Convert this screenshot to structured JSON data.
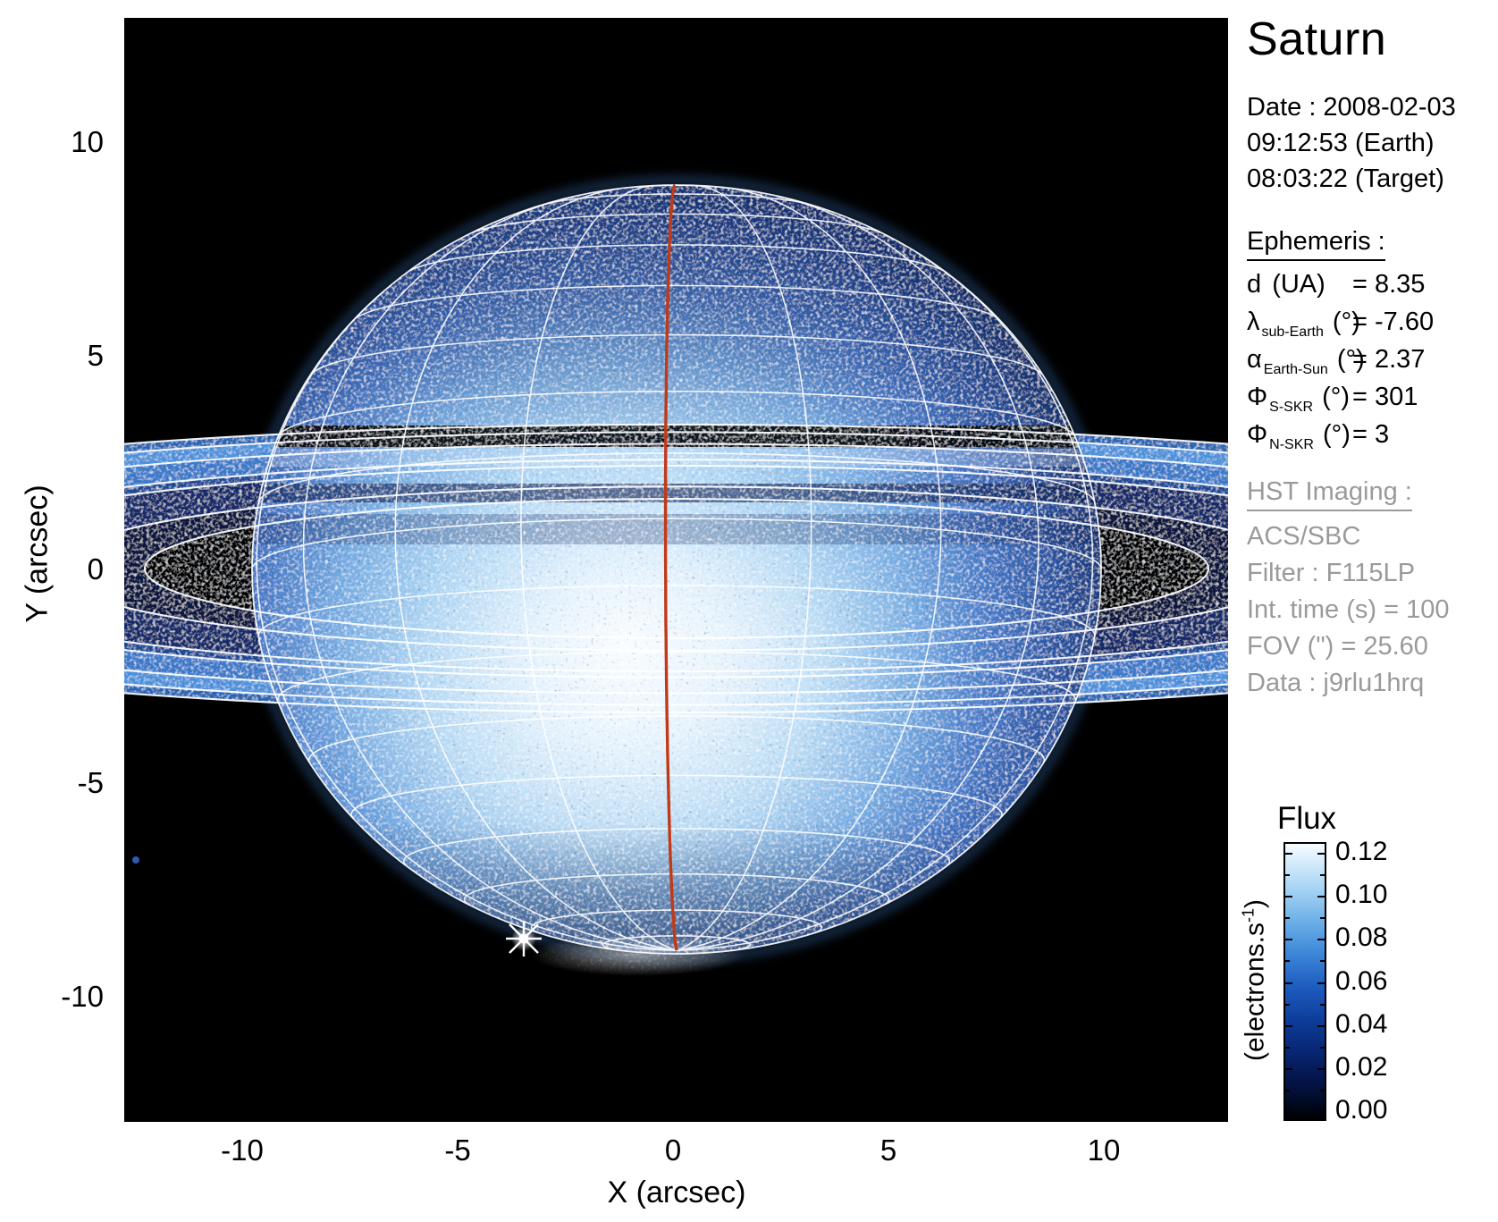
{
  "title": "Saturn",
  "date_block": {
    "lines": [
      "Date : 2008-02-03",
      "09:12:53 (Earth)",
      "08:03:22 (Target)"
    ]
  },
  "ephemeris": {
    "heading": "Ephemeris :",
    "rows": [
      {
        "symbol": "d",
        "sub": "",
        "unit": " (UA)",
        "eq": "= 8.35"
      },
      {
        "symbol": "λ",
        "sub": "sub-Earth",
        "unit": " (°)",
        "eq": "= -7.60"
      },
      {
        "symbol": "α",
        "sub": "Earth-Sun",
        "unit": " (°)",
        "eq": "= 2.37"
      },
      {
        "symbol": "Φ",
        "sub": "S-SKR",
        "unit": " (°)",
        "eq": "= 301"
      },
      {
        "symbol": "Φ",
        "sub": "N-SKR",
        "unit": " (°)",
        "eq": "= 3"
      }
    ]
  },
  "hst": {
    "heading": "HST Imaging :",
    "lines": [
      "ACS/SBC",
      "Filter : F115LP",
      "Int. time (s) = 100",
      "FOV (\") = 25.60",
      "Data : j9rlu1hrq"
    ]
  },
  "colorbar": {
    "title": "Flux",
    "unit_pre": "(electrons.s",
    "unit_sup": "-1",
    "unit_post": ")",
    "tick_labels": [
      "0.12",
      "0.10",
      "0.08",
      "0.06",
      "0.04",
      "0.02",
      "0.00"
    ]
  },
  "axes": {
    "x_label": "X (arcsec)",
    "y_label": "Y (arcsec)",
    "x_ticks": [
      "-10",
      "-5",
      "0",
      "5",
      "10"
    ],
    "y_ticks": [
      "10",
      "5",
      "0",
      "-5",
      "-10"
    ]
  },
  "colors": {
    "background": "#000000",
    "meridian_red": "#c03a18",
    "grid_white": "#ffffff",
    "panel_gray": "#9a9a9a"
  },
  "chart_data": {
    "type": "heatmap",
    "title": "Saturn",
    "xlabel": "X (arcsec)",
    "ylabel": "Y (arcsec)",
    "xlim": [
      -12.8,
      12.8
    ],
    "ylim": [
      -12.8,
      12.8
    ],
    "x_ticks": [
      -10,
      -5,
      0,
      5,
      10
    ],
    "y_ticks": [
      10,
      5,
      0,
      -5,
      -10
    ],
    "grid": false,
    "colorbar": {
      "title": "Flux",
      "unit": "electrons.s-1",
      "range": [
        0,
        0.12
      ],
      "ticks": [
        0.12,
        0.1,
        0.08,
        0.06,
        0.04,
        0.02,
        0.0
      ]
    },
    "content": "HST far-UV flux image of Saturn: speckled blue planetary disk overlaid with a white latitude/longitude model grid, near-edge-on rings crossing the full field, dark ring/shadow bands across the disk, a red highlighted central meridian, and a bright point source near the southern limb",
    "ephemeris_values": {
      "d_UA": 8.35,
      "lambda_sub_earth_deg": -7.6,
      "alpha_earth_sun_deg": 2.37,
      "phi_S_SKR_deg": 301,
      "phi_N_SKR_deg": 3
    },
    "observation": {
      "date": "2008-02-03",
      "time_earth": "09:12:53",
      "time_target": "08:03:22",
      "instrument": "ACS/SBC",
      "filter": "F115LP",
      "int_time_s": 100,
      "fov_arcsec": 25.6,
      "data_id": "j9rlu1hrq"
    }
  }
}
